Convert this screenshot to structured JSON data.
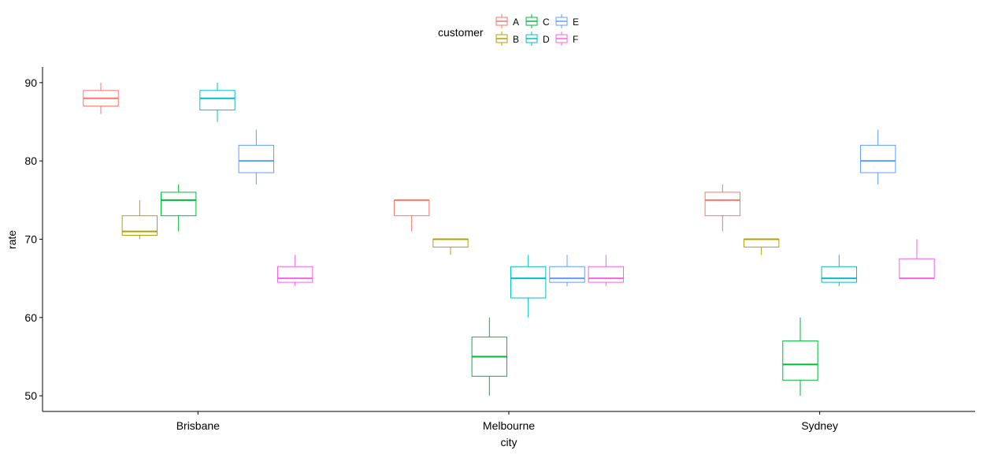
{
  "chart_data": {
    "type": "boxplot",
    "xlabel": "city",
    "ylabel": "rate",
    "categories": [
      "Brisbane",
      "Melbourne",
      "Sydney"
    ],
    "ylim": [
      48,
      92
    ],
    "yticks": [
      50,
      60,
      70,
      80,
      90
    ],
    "grid": false,
    "legend": {
      "title": "customer",
      "position": "top",
      "entries": [
        "A",
        "B",
        "C",
        "D",
        "E",
        "F"
      ]
    },
    "series": [
      {
        "name": "A",
        "color": "#F8766D",
        "boxes": [
          {
            "category": "Brisbane",
            "min": 86,
            "q1": 87,
            "median": 88,
            "q3": 89,
            "max": 90
          },
          {
            "category": "Melbourne",
            "min": 71,
            "q1": 73,
            "median": 75,
            "q3": 75,
            "max": 75
          },
          {
            "category": "Sydney",
            "min": 71,
            "q1": 73,
            "median": 75,
            "q3": 76,
            "max": 77
          }
        ]
      },
      {
        "name": "B",
        "color": "#B79F00",
        "boxes": [
          {
            "category": "Brisbane",
            "min": 70,
            "q1": 70.5,
            "median": 71,
            "q3": 73,
            "max": 75
          },
          {
            "category": "Melbourne",
            "min": 68,
            "q1": 69,
            "median": 70,
            "q3": 70,
            "max": 70
          },
          {
            "category": "Sydney",
            "min": 68,
            "q1": 69,
            "median": 70,
            "q3": 70,
            "max": 70
          }
        ]
      },
      {
        "name": "C",
        "color": "#00BA38",
        "boxes": [
          {
            "category": "Brisbane",
            "min": 71,
            "q1": 73,
            "median": 75,
            "q3": 76,
            "max": 77
          },
          {
            "category": "Melbourne",
            "min": 50,
            "q1": 52.5,
            "median": 55,
            "q3": 57.5,
            "max": 60
          },
          {
            "category": "Sydney",
            "min": 50,
            "q1": 52,
            "median": 54,
            "q3": 57,
            "max": 60
          }
        ]
      },
      {
        "name": "D",
        "color": "#00BFC4",
        "boxes": [
          {
            "category": "Brisbane",
            "min": 85,
            "q1": 86.5,
            "median": 88,
            "q3": 89,
            "max": 90
          },
          {
            "category": "Melbourne",
            "min": 60,
            "q1": 62.5,
            "median": 65,
            "q3": 66.5,
            "max": 68
          },
          {
            "category": "Sydney",
            "min": 64,
            "q1": 64.5,
            "median": 65,
            "q3": 66.5,
            "max": 68
          }
        ]
      },
      {
        "name": "E",
        "color": "#619CFF",
        "boxes": [
          {
            "category": "Brisbane",
            "min": 77,
            "q1": 78.5,
            "median": 80,
            "q3": 82,
            "max": 84
          },
          {
            "category": "Melbourne",
            "min": 64,
            "q1": 64.5,
            "median": 65,
            "q3": 66.5,
            "max": 68
          },
          {
            "category": "Sydney",
            "min": 77,
            "q1": 78.5,
            "median": 80,
            "q3": 82,
            "max": 84
          }
        ]
      },
      {
        "name": "F",
        "color": "#F564E3",
        "boxes": [
          {
            "category": "Brisbane",
            "min": 64,
            "q1": 64.5,
            "median": 65,
            "q3": 66.5,
            "max": 68
          },
          {
            "category": "Melbourne",
            "min": 64,
            "q1": 64.5,
            "median": 65,
            "q3": 66.5,
            "max": 68
          },
          {
            "category": "Sydney",
            "min": 65,
            "q1": 65,
            "median": 65,
            "q3": 67.5,
            "max": 70
          }
        ]
      }
    ]
  }
}
